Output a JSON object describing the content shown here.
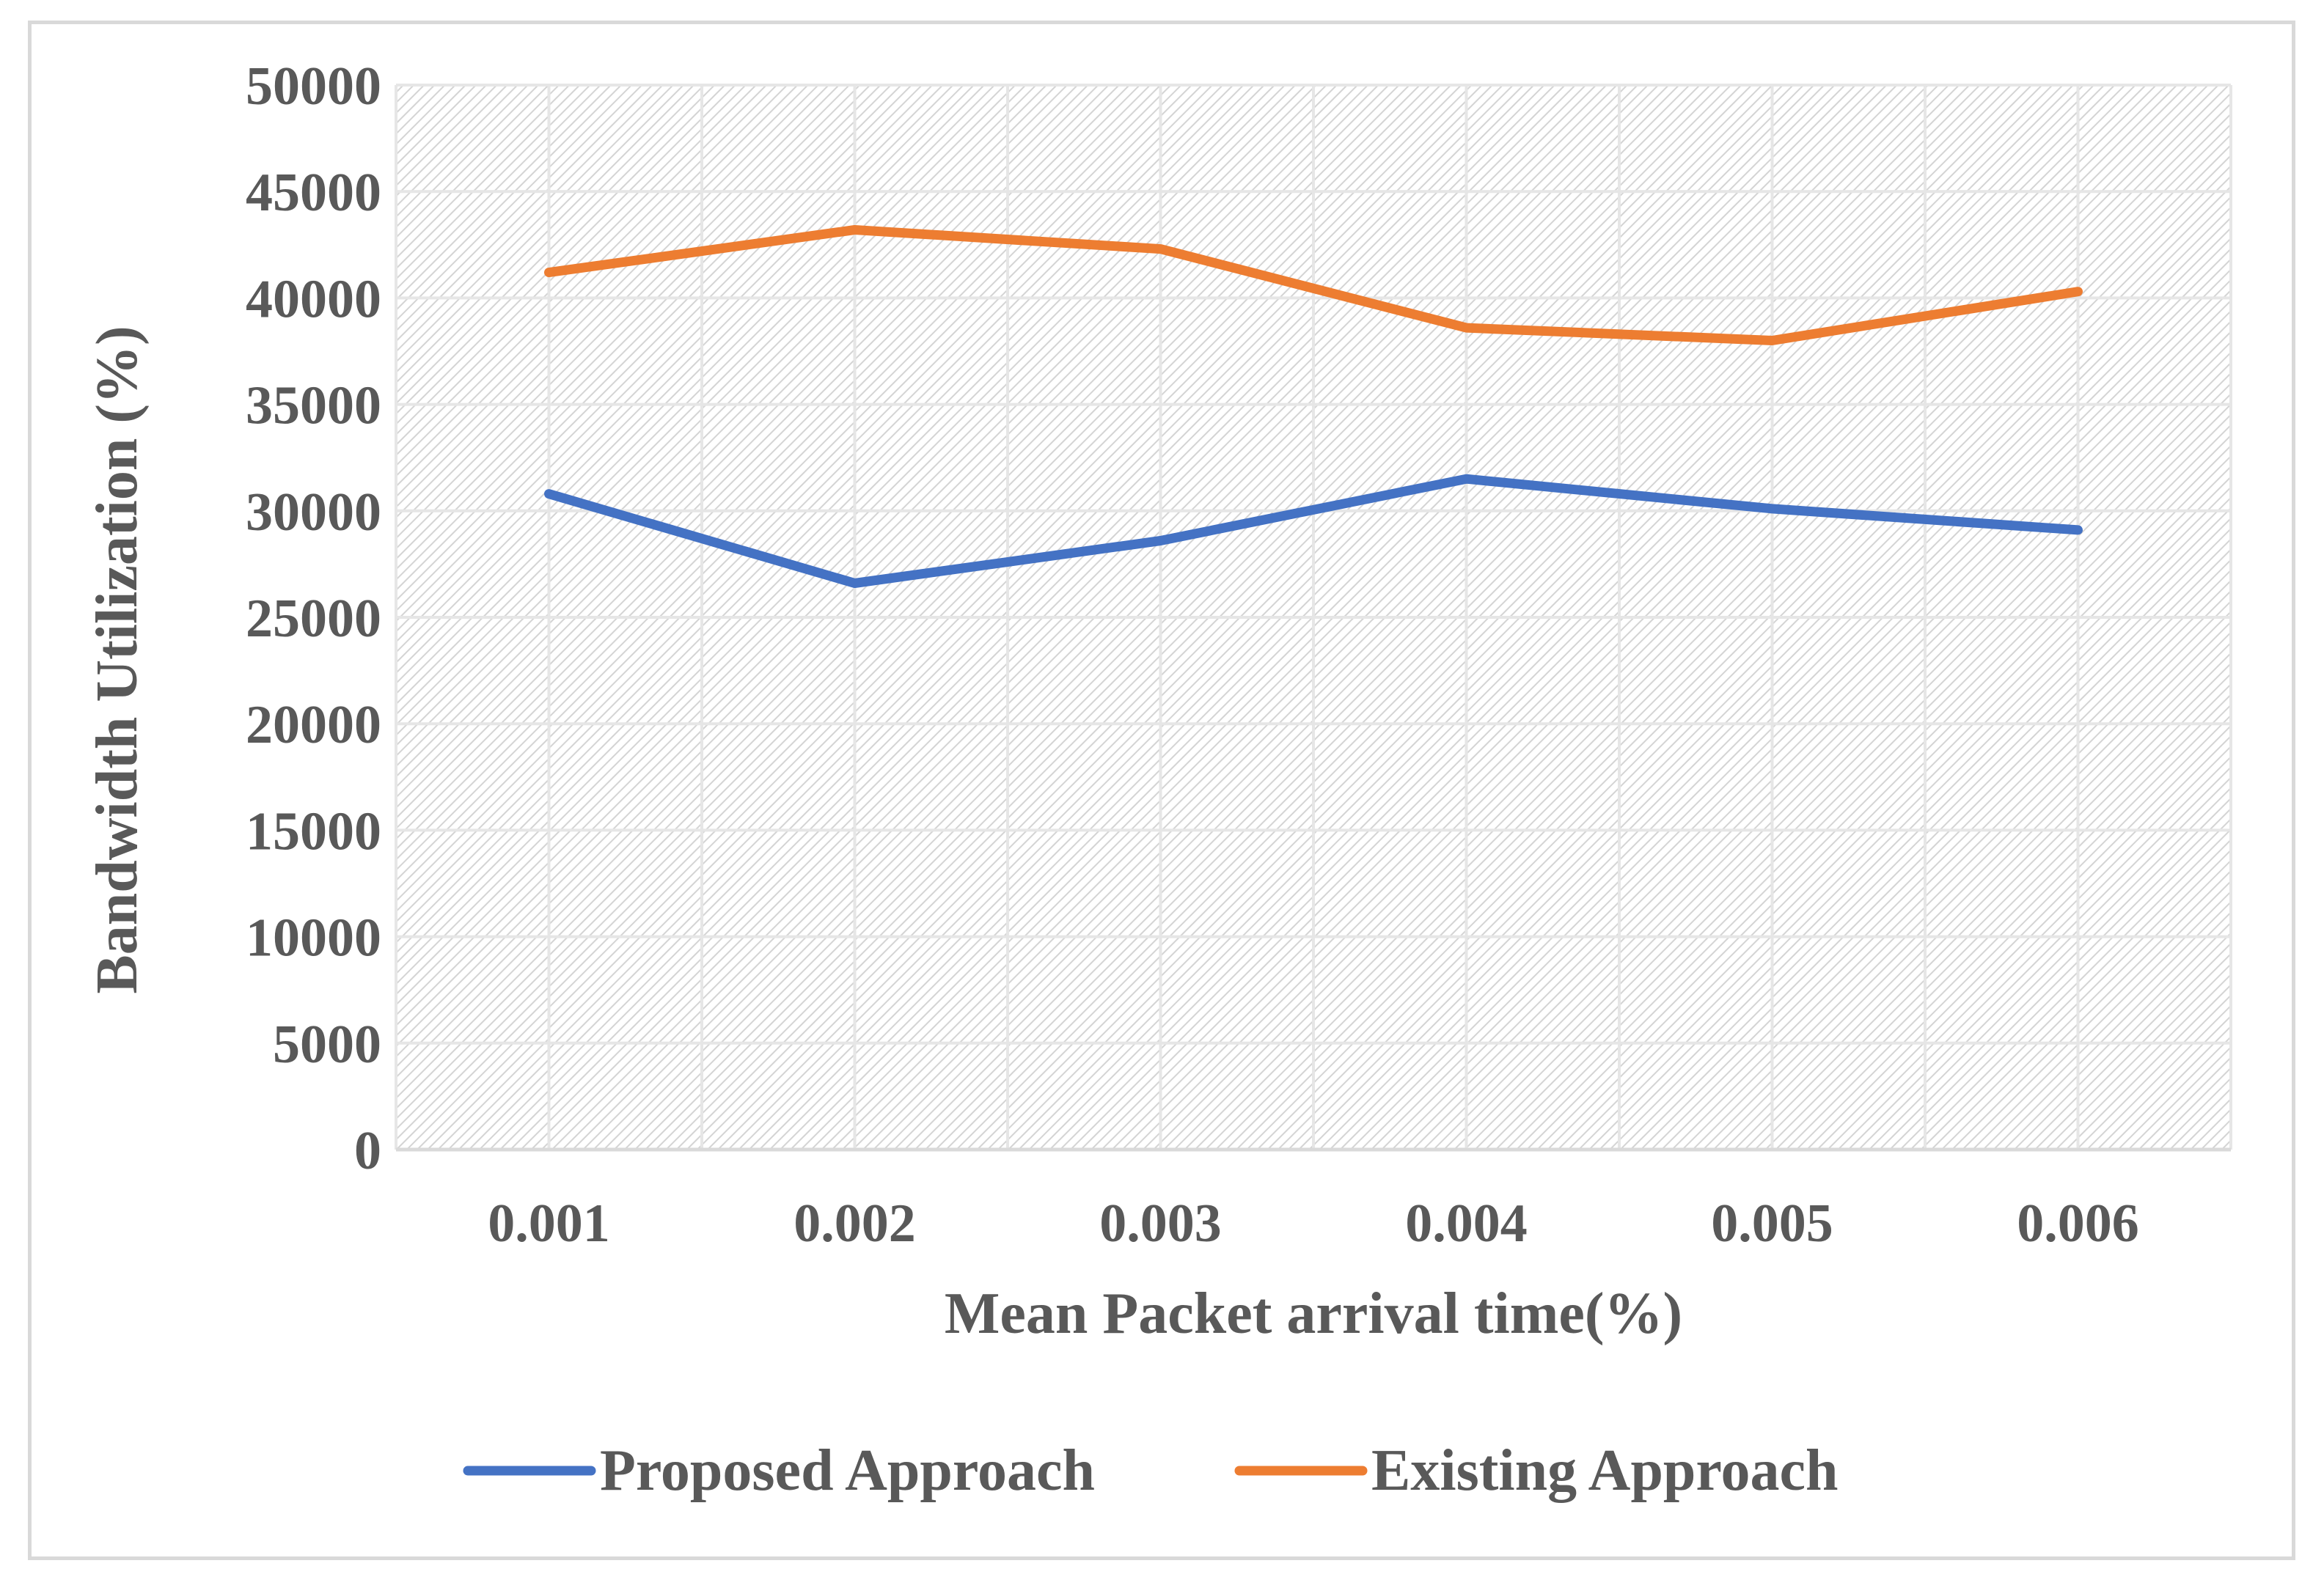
{
  "chart_data": {
    "type": "line",
    "title": "",
    "xlabel": "Mean Packet arrival time(%)",
    "ylabel": "Bandwidth Utilization (%)",
    "categories": [
      "0.001",
      "0.002",
      "0.003",
      "0.004",
      "0.005",
      "0.006"
    ],
    "yticks": [
      "0",
      "5000",
      "10000",
      "15000",
      "20000",
      "25000",
      "30000",
      "35000",
      "40000",
      "45000",
      "50000"
    ],
    "ylim": [
      0,
      50000
    ],
    "grid": true,
    "legend_position": "bottom",
    "series": [
      {
        "name": "Proposed Approach",
        "color": "#4472c4",
        "values": [
          30800,
          26600,
          28600,
          31500,
          30100,
          29100
        ]
      },
      {
        "name": "Existing Approach",
        "color": "#ed7d31",
        "values": [
          41200,
          43200,
          42300,
          38600,
          38000,
          40300
        ]
      }
    ]
  }
}
